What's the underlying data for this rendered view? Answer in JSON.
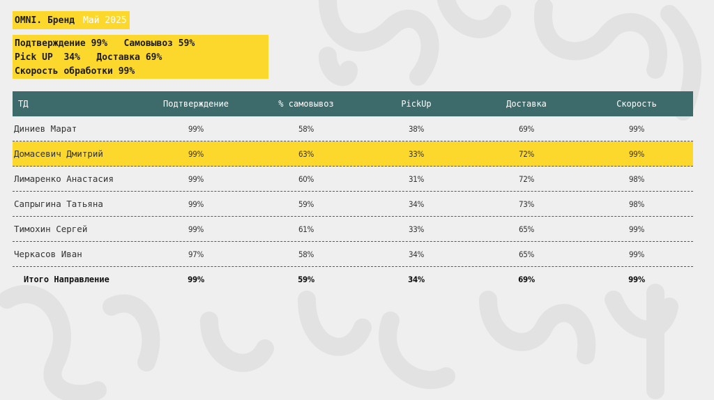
{
  "title": {
    "brand": "OMNI. Бренд",
    "period": "Май 2025"
  },
  "summary": {
    "lines": [
      "Подтверждение 99%   Самовывоз 59%",
      "Pick UP  34%   Доставка 69%",
      "Скорость обработки 99%"
    ]
  },
  "table": {
    "headers": [
      "ТД",
      "Подтверждение",
      "% самовывоз",
      "PickUp",
      "Доставка",
      "Скорость"
    ],
    "rows": [
      {
        "name": "Диниев Марат",
        "values": [
          "99%",
          "58%",
          "38%",
          "69%",
          "99%"
        ]
      },
      {
        "name": "Домасевич Дмитрий",
        "values": [
          "99%",
          "63%",
          "33%",
          "72%",
          "99%"
        ]
      },
      {
        "name": "Лимаренко Анастасия",
        "values": [
          "99%",
          "60%",
          "31%",
          "72%",
          "98%"
        ]
      },
      {
        "name": "Сапрыгина Татьяна",
        "values": [
          "99%",
          "59%",
          "34%",
          "73%",
          "98%"
        ]
      },
      {
        "name": "Тимохин Сергей",
        "values": [
          "99%",
          "61%",
          "33%",
          "65%",
          "99%"
        ]
      },
      {
        "name": "Черкасов Иван",
        "values": [
          "97%",
          "58%",
          "34%",
          "65%",
          "99%"
        ]
      }
    ],
    "total": {
      "name": "Итого Направление",
      "values": [
        "99%",
        "59%",
        "34%",
        "69%",
        "99%"
      ]
    }
  },
  "colors": {
    "accent_yellow": "#fcd82c",
    "header_teal": "#3d6b6b",
    "background": "#efefef"
  }
}
